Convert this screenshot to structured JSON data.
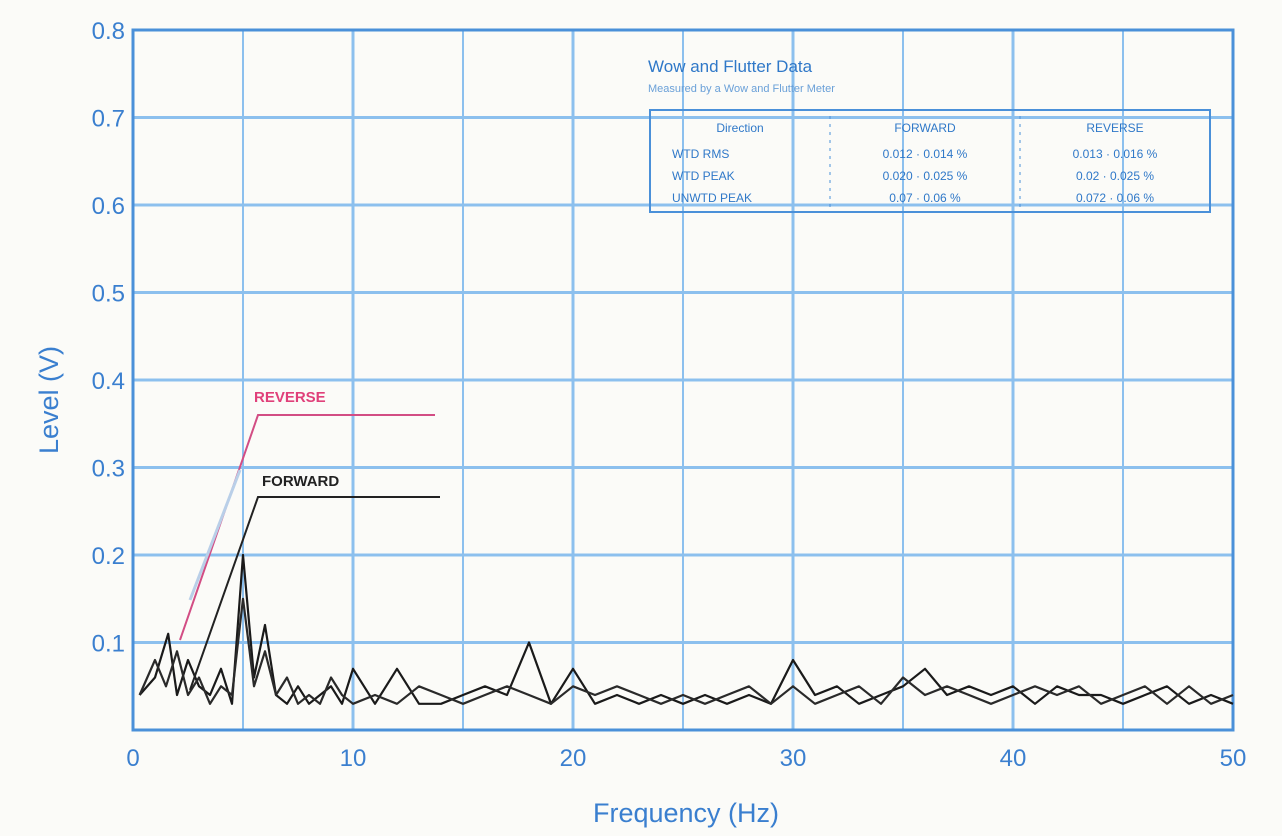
{
  "chart_data": {
    "type": "line",
    "title": "",
    "xlabel": "Frequency (Hz)",
    "ylabel": "Level (V)",
    "xlim": [
      0,
      50
    ],
    "ylim": [
      0,
      0.8
    ],
    "xticks": [
      "0",
      "10",
      "20",
      "30",
      "40",
      "50"
    ],
    "yticks": [
      "0.1",
      "0.2",
      "0.3",
      "0.4",
      "0.5",
      "0.6",
      "0.7",
      "0.8"
    ],
    "grid": true,
    "colors": {
      "axis": "#4a90d9",
      "grid": "#8cc0ee",
      "forward": "#1a1a1a",
      "reverse": "#2a2a2a",
      "reverse_label": "#e0407a"
    },
    "series": [
      {
        "name": "FORWARD",
        "x": [
          0.3,
          1,
          1.6,
          2,
          2.5,
          3,
          3.5,
          4,
          4.5,
          5,
          5.5,
          6,
          6.5,
          7,
          7.5,
          8,
          8.5,
          9,
          9.5,
          10,
          11,
          12,
          13,
          14,
          15,
          16,
          17,
          18,
          19,
          20,
          21,
          22,
          23,
          24,
          25,
          26,
          27,
          28,
          29,
          30,
          31,
          32,
          33,
          34,
          35,
          36,
          37,
          38,
          39,
          40,
          41,
          42,
          43,
          44,
          45,
          46,
          47,
          48,
          49,
          50
        ],
        "y": [
          0.04,
          0.06,
          0.11,
          0.04,
          0.08,
          0.05,
          0.04,
          0.07,
          0.03,
          0.2,
          0.06,
          0.12,
          0.04,
          0.03,
          0.05,
          0.03,
          0.04,
          0.05,
          0.03,
          0.07,
          0.03,
          0.07,
          0.03,
          0.03,
          0.04,
          0.05,
          0.04,
          0.1,
          0.03,
          0.07,
          0.03,
          0.04,
          0.03,
          0.04,
          0.03,
          0.04,
          0.03,
          0.04,
          0.03,
          0.08,
          0.04,
          0.05,
          0.03,
          0.04,
          0.05,
          0.07,
          0.04,
          0.05,
          0.04,
          0.05,
          0.03,
          0.05,
          0.04,
          0.04,
          0.03,
          0.04,
          0.05,
          0.03,
          0.04,
          0.03
        ]
      },
      {
        "name": "REVERSE",
        "x": [
          0.3,
          1,
          1.5,
          2,
          2.5,
          3,
          3.5,
          4,
          4.5,
          5,
          5.5,
          6,
          6.5,
          7,
          7.5,
          8,
          8.5,
          9,
          9.5,
          10,
          11,
          12,
          13,
          14,
          15,
          16,
          17,
          18,
          19,
          20,
          21,
          22,
          23,
          24,
          25,
          26,
          27,
          28,
          29,
          30,
          31,
          32,
          33,
          34,
          35,
          36,
          37,
          38,
          39,
          40,
          41,
          42,
          43,
          44,
          45,
          46,
          47,
          48,
          49,
          50
        ],
        "y": [
          0.04,
          0.08,
          0.05,
          0.09,
          0.04,
          0.06,
          0.03,
          0.05,
          0.04,
          0.15,
          0.05,
          0.09,
          0.04,
          0.06,
          0.03,
          0.04,
          0.03,
          0.06,
          0.04,
          0.03,
          0.04,
          0.03,
          0.05,
          0.04,
          0.03,
          0.04,
          0.05,
          0.04,
          0.03,
          0.05,
          0.04,
          0.05,
          0.04,
          0.03,
          0.04,
          0.03,
          0.04,
          0.05,
          0.03,
          0.05,
          0.03,
          0.04,
          0.05,
          0.03,
          0.06,
          0.04,
          0.05,
          0.04,
          0.03,
          0.04,
          0.05,
          0.04,
          0.05,
          0.03,
          0.04,
          0.05,
          0.03,
          0.05,
          0.03,
          0.04
        ]
      }
    ],
    "annotations": [
      {
        "text": "REVERSE",
        "color": "#e0407a"
      },
      {
        "text": "FORWARD",
        "color": "#222222"
      }
    ],
    "legend_table": {
      "title": "Wow and Flutter Data",
      "subtitle": "Measured by a Wow and Flutter Meter",
      "headers": [
        "Direction",
        "FORWARD",
        "REVERSE"
      ],
      "rows": [
        [
          "WTD RMS",
          "0.012 · 0.014 %",
          "0.013 · 0.016 %"
        ],
        [
          "WTD PEAK",
          "0.020 · 0.025 %",
          "0.02 · 0.025 %"
        ],
        [
          "UNWTD PEAK",
          "0.07 · 0.06 %",
          "0.072 · 0.06 %"
        ]
      ]
    }
  }
}
